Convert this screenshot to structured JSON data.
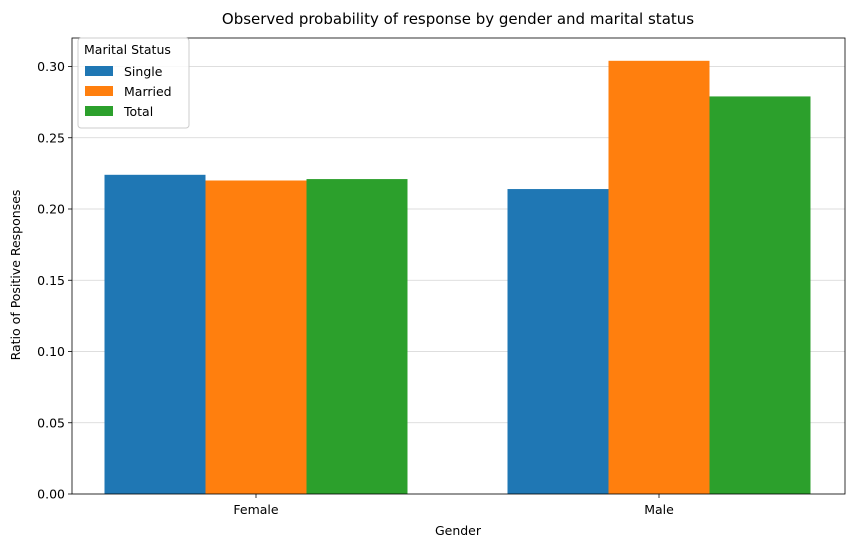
{
  "chart_data": {
    "type": "bar",
    "title": "Observed probability of response by gender and marital status",
    "xlabel": "Gender",
    "ylabel": "Ratio of Positive Responses",
    "categories": [
      "Female",
      "Male"
    ],
    "series": [
      {
        "name": "Single",
        "values": [
          0.224,
          0.214
        ],
        "color": "#1f77b4"
      },
      {
        "name": "Married",
        "values": [
          0.22,
          0.304
        ],
        "color": "#ff7f0e"
      },
      {
        "name": "Total",
        "values": [
          0.221,
          0.279
        ],
        "color": "#2ca02c"
      }
    ],
    "ylim": [
      0,
      0.32
    ],
    "yticks": [
      "0.00",
      "0.05",
      "0.10",
      "0.15",
      "0.20",
      "0.25",
      "0.30"
    ],
    "grid": "horizontal",
    "legend": {
      "title": "Marital Status",
      "placement": "top-left"
    }
  }
}
